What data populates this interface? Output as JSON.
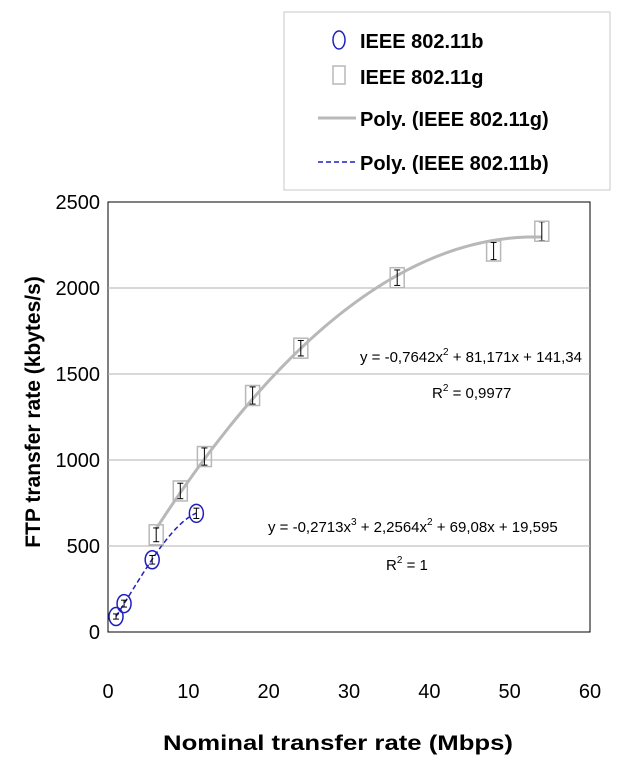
{
  "chart_data": {
    "type": "scatter",
    "xlabel": "Nominal transfer rate (Mbps)",
    "ylabel": "FTP transfer rate (kbytes/s)",
    "xlim": [
      0,
      60
    ],
    "ylim": [
      0,
      2500
    ],
    "xticks": [
      0,
      10,
      20,
      30,
      40,
      50,
      60
    ],
    "yticks": [
      0,
      500,
      1000,
      1500,
      2000,
      2500
    ],
    "grid": "horizontal",
    "legend_position": "top-right",
    "legend": [
      "IEEE 802.11b",
      "IEEE 802.11g",
      "Poly. (IEEE 802.11g)",
      "Poly. (IEEE 802.11b)"
    ],
    "series": [
      {
        "name": "IEEE 802.11b",
        "marker": "circle",
        "color": "#1f1fbf",
        "x": [
          1,
          2,
          5.5,
          11
        ],
        "y": [
          90,
          165,
          420,
          690
        ],
        "err": [
          15,
          20,
          25,
          30
        ]
      },
      {
        "name": "IEEE 802.11g",
        "marker": "square",
        "color": "#b8b8b8",
        "x": [
          6,
          9,
          12,
          18,
          24,
          36,
          48,
          54
        ],
        "y": [
          565,
          820,
          1020,
          1375,
          1650,
          2060,
          2215,
          2330
        ],
        "err": [
          40,
          45,
          50,
          50,
          45,
          45,
          50,
          55
        ]
      }
    ],
    "trendlines": [
      {
        "name": "Poly. (IEEE 802.11g)",
        "color": "#b8b8b8",
        "style": "solid",
        "coeffs": [
          141.34,
          81.171,
          -0.7642
        ],
        "xrange": [
          6,
          54
        ]
      },
      {
        "name": "Poly. (IEEE 802.11b)",
        "color": "#1f1fbf",
        "style": "dashed",
        "coeffs": [
          19.595,
          69.08,
          2.2564,
          -0.2713
        ],
        "xrange": [
          1,
          11
        ]
      }
    ],
    "annotations": [
      {
        "eq_base": "y = -0,7642x",
        "eq_sup": "2",
        "eq_rest": " + 81,171x + 141,34",
        "r2": " = 0,9977"
      },
      {
        "eq_base": "y = -0,2713x",
        "eq_sup": "3",
        "eq_mid": " + 2,2564x",
        "eq_sup2": "2",
        "eq_rest": " + 69,08x + 19,595",
        "r2": " = 1"
      }
    ]
  }
}
